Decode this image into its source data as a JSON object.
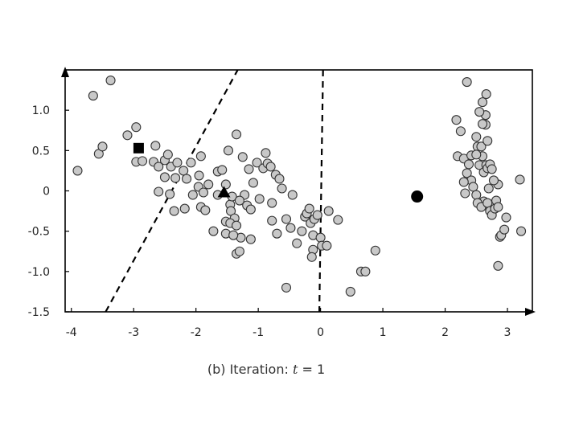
{
  "chart_data": {
    "type": "scatter",
    "caption": {
      "prefix": "(b) Iteration: ",
      "variable": "t",
      "suffix": " = 1"
    },
    "xlim": [
      -4.1,
      3.4
    ],
    "ylim": [
      -1.5,
      1.5
    ],
    "x_ticks": [
      -4,
      -3,
      -2,
      -1,
      0,
      1,
      2,
      3
    ],
    "y_ticks": [
      1.0,
      0.5,
      0,
      -0.5,
      -1.0,
      -1.5
    ],
    "x_tick_labels": [
      "-4",
      "-3",
      "-2",
      "-1",
      "0",
      "1",
      "2",
      "3"
    ],
    "y_tick_labels": [
      "1.0",
      "0.5",
      "0",
      "-0.5",
      "-1.0",
      "-1.5"
    ],
    "grid": false,
    "point_color": "#c8c8c8",
    "center_color": "#000000",
    "centers": [
      {
        "shape": "square",
        "x": -2.92,
        "y": 0.53
      },
      {
        "shape": "triangle",
        "x": -1.55,
        "y": -0.02
      },
      {
        "shape": "circle",
        "x": 1.55,
        "y": -0.07
      }
    ],
    "boundaries": [
      {
        "style": "dashed",
        "x1": -3.45,
        "y1": -1.5,
        "x2": -1.33,
        "y2": 1.5
      },
      {
        "style": "dashed",
        "x1": 0.04,
        "y1": 1.5,
        "x2": -0.02,
        "y2": -1.5
      }
    ],
    "points": [
      [
        -3.9,
        0.25
      ],
      [
        -3.65,
        1.18
      ],
      [
        -3.37,
        1.37
      ],
      [
        -3.56,
        0.46
      ],
      [
        -3.5,
        0.55
      ],
      [
        -3.1,
        0.69
      ],
      [
        -2.96,
        0.79
      ],
      [
        -2.96,
        0.36
      ],
      [
        -2.86,
        0.37
      ],
      [
        -2.65,
        0.56
      ],
      [
        -2.68,
        0.36
      ],
      [
        -2.6,
        0.3
      ],
      [
        -2.5,
        0.38
      ],
      [
        -2.45,
        0.45
      ],
      [
        -2.4,
        0.3
      ],
      [
        -2.33,
        0.16
      ],
      [
        -2.3,
        0.35
      ],
      [
        -2.2,
        0.25
      ],
      [
        -2.15,
        0.15
      ],
      [
        -2.08,
        0.35
      ],
      [
        -2.5,
        0.17
      ],
      [
        -2.6,
        -0.01
      ],
      [
        -2.42,
        -0.04
      ],
      [
        -2.35,
        -0.25
      ],
      [
        -2.18,
        -0.22
      ],
      [
        -2.05,
        -0.05
      ],
      [
        -1.95,
        0.19
      ],
      [
        -1.96,
        0.05
      ],
      [
        -1.88,
        -0.02
      ],
      [
        -1.8,
        0.08
      ],
      [
        -1.92,
        0.43
      ],
      [
        -1.65,
        0.24
      ],
      [
        -1.58,
        0.26
      ],
      [
        -1.92,
        -0.2
      ],
      [
        -1.85,
        -0.24
      ],
      [
        -1.72,
        -0.5
      ],
      [
        -1.52,
        -0.53
      ],
      [
        -1.65,
        -0.05
      ],
      [
        -1.45,
        -0.17
      ],
      [
        -1.44,
        -0.25
      ],
      [
        -1.42,
        -0.07
      ],
      [
        -1.38,
        -0.34
      ],
      [
        -1.52,
        -0.38
      ],
      [
        -1.45,
        -0.4
      ],
      [
        -1.35,
        -0.43
      ],
      [
        -1.28,
        -0.58
      ],
      [
        -1.4,
        -0.55
      ],
      [
        -1.35,
        -0.78
      ],
      [
        -1.3,
        -0.75
      ],
      [
        -1.48,
        0.5
      ],
      [
        -1.35,
        0.7
      ],
      [
        -1.22,
        -0.05
      ],
      [
        -1.18,
        -0.18
      ],
      [
        -1.12,
        -0.23
      ],
      [
        -1.08,
        0.1
      ],
      [
        -1.02,
        0.35
      ],
      [
        -1.3,
        -0.12
      ],
      [
        -1.25,
        0.42
      ],
      [
        -1.15,
        0.27
      ],
      [
        -0.98,
        -0.1
      ],
      [
        -0.92,
        0.28
      ],
      [
        -0.88,
        0.47
      ],
      [
        -0.85,
        0.34
      ],
      [
        -0.8,
        0.3
      ],
      [
        -0.78,
        -0.15
      ],
      [
        -0.72,
        0.2
      ],
      [
        -0.66,
        0.15
      ],
      [
        -0.62,
        0.03
      ],
      [
        -0.7,
        -0.53
      ],
      [
        -0.78,
        -0.37
      ],
      [
        -0.55,
        -0.35
      ],
      [
        -0.48,
        -0.46
      ],
      [
        -0.45,
        -0.05
      ],
      [
        -0.38,
        -0.65
      ],
      [
        -0.3,
        -0.5
      ],
      [
        -0.25,
        -0.32
      ],
      [
        -0.22,
        -0.28
      ],
      [
        -0.18,
        -0.22
      ],
      [
        -0.16,
        -0.4
      ],
      [
        -0.1,
        -0.35
      ],
      [
        -0.12,
        -0.73
      ],
      [
        -0.14,
        -0.82
      ],
      [
        -0.05,
        -0.3
      ],
      [
        -0.12,
        -0.55
      ],
      [
        0.0,
        -0.58
      ],
      [
        0.02,
        -0.68
      ],
      [
        0.1,
        -0.68
      ],
      [
        0.13,
        -0.25
      ],
      [
        0.28,
        -0.36
      ],
      [
        0.48,
        -1.25
      ],
      [
        0.65,
        -1.0
      ],
      [
        0.72,
        -1.0
      ],
      [
        0.88,
        -0.74
      ],
      [
        -0.55,
        -1.2
      ],
      [
        -1.52,
        0.08
      ],
      [
        -1.12,
        -0.6
      ],
      [
        2.18,
        0.88
      ],
      [
        2.25,
        0.74
      ],
      [
        2.35,
        1.35
      ],
      [
        2.2,
        0.43
      ],
      [
        2.3,
        0.4
      ],
      [
        2.42,
        0.44
      ],
      [
        2.35,
        0.22
      ],
      [
        2.42,
        0.13
      ],
      [
        2.3,
        0.11
      ],
      [
        2.38,
        0.33
      ],
      [
        2.32,
        -0.03
      ],
      [
        2.45,
        0.05
      ],
      [
        2.5,
        -0.05
      ],
      [
        2.52,
        0.55
      ],
      [
        2.5,
        0.67
      ],
      [
        2.58,
        0.55
      ],
      [
        2.6,
        0.43
      ],
      [
        2.55,
        0.32
      ],
      [
        2.62,
        0.23
      ],
      [
        2.66,
        0.32
      ],
      [
        2.68,
        0.28
      ],
      [
        2.72,
        0.33
      ],
      [
        2.75,
        0.27
      ],
      [
        2.7,
        0.03
      ],
      [
        2.62,
        -0.13
      ],
      [
        2.52,
        -0.15
      ],
      [
        2.58,
        -0.2
      ],
      [
        2.68,
        -0.15
      ],
      [
        2.72,
        -0.25
      ],
      [
        2.75,
        -0.3
      ],
      [
        2.8,
        -0.22
      ],
      [
        2.82,
        -0.12
      ],
      [
        2.85,
        -0.2
      ],
      [
        2.65,
        0.82
      ],
      [
        2.6,
        0.83
      ],
      [
        2.68,
        0.62
      ],
      [
        2.6,
        1.1
      ],
      [
        2.66,
        1.2
      ],
      [
        2.65,
        0.94
      ],
      [
        2.55,
        0.98
      ],
      [
        2.5,
        0.45
      ],
      [
        2.85,
        0.08
      ],
      [
        2.88,
        -0.57
      ],
      [
        2.85,
        -0.93
      ],
      [
        2.9,
        -0.55
      ],
      [
        2.95,
        -0.48
      ],
      [
        2.98,
        -0.33
      ],
      [
        3.2,
        0.14
      ],
      [
        3.22,
        -0.5
      ],
      [
        2.78,
        0.13
      ]
    ]
  }
}
